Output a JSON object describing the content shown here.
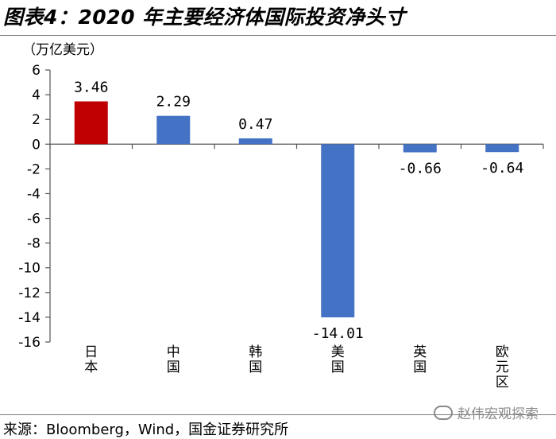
{
  "figure": {
    "title": "图表4：2020 年主要经济体国际投资净头寸",
    "source": "来源：Bloomberg，Wind，国金证券研究所",
    "watermark": "赵伟宏观探索"
  },
  "chart_data": {
    "type": "bar",
    "unit_label": "（万亿美元）",
    "categories": [
      "日本",
      "中国",
      "韩国",
      "美国",
      "英国",
      "欧元区"
    ],
    "values": [
      3.46,
      2.29,
      0.47,
      -14.01,
      -0.66,
      -0.64
    ],
    "value_labels": [
      "3.46",
      "2.29",
      "0.47",
      "-14.01",
      "-0.66",
      "-0.64"
    ],
    "bar_colors": [
      "#c00000",
      "#4472c4",
      "#4472c4",
      "#4472c4",
      "#4472c4",
      "#4472c4"
    ],
    "ylim": [
      -16,
      6
    ],
    "yticks": [
      6,
      4,
      2,
      0,
      -2,
      -4,
      -6,
      -8,
      -10,
      -12,
      -14,
      -16
    ],
    "grid": false,
    "legend": "none"
  }
}
